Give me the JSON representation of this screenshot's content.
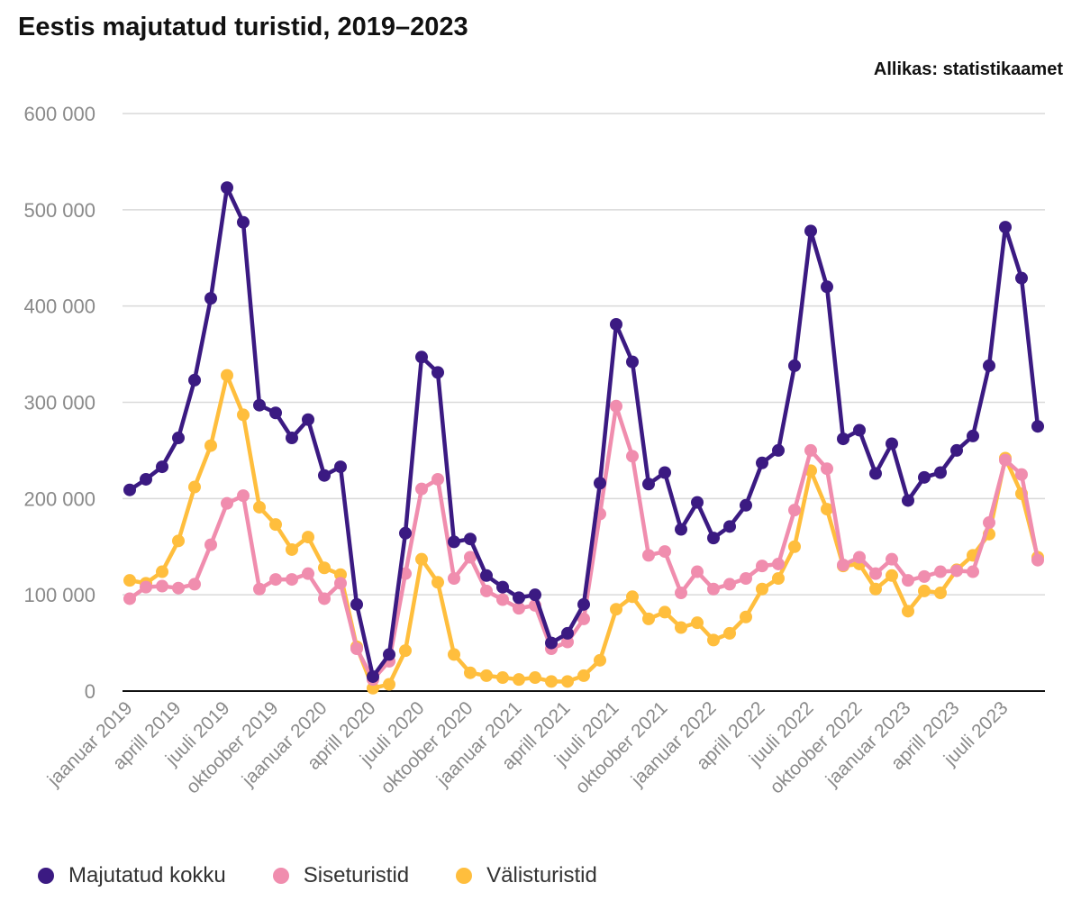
{
  "title": "Eestis majutatud turistid, 2019–2023",
  "source": "Allikas: statistikaamet",
  "colors": {
    "total": "#3b1a82",
    "domestic": "#f08dae",
    "foreign": "#ffbe3d",
    "grid": "#d9d9d9",
    "axis": "#111111"
  },
  "chart_data": {
    "type": "line",
    "title": "Eestis majutatud turistid, 2019–2023",
    "xlabel": "",
    "ylabel": "",
    "ylim": [
      0,
      600000
    ],
    "grid": true,
    "legend_position": "bottom",
    "y_ticks": [
      0,
      100000,
      200000,
      300000,
      400000,
      500000,
      600000
    ],
    "y_tick_labels": [
      "0",
      "100 000",
      "200 000",
      "300 000",
      "400 000",
      "500 000",
      "600 000"
    ],
    "x_tick_labels": [
      {
        "index": 0,
        "label": "jaanuar 2019"
      },
      {
        "index": 3,
        "label": "aprill 2019"
      },
      {
        "index": 6,
        "label": "juuli 2019"
      },
      {
        "index": 9,
        "label": "oktoober 2019"
      },
      {
        "index": 12,
        "label": "jaanuar 2020"
      },
      {
        "index": 15,
        "label": "aprill 2020"
      },
      {
        "index": 18,
        "label": "juuli 2020"
      },
      {
        "index": 21,
        "label": "oktoober 2020"
      },
      {
        "index": 24,
        "label": "jaanuar 2021"
      },
      {
        "index": 27,
        "label": "aprill 2021"
      },
      {
        "index": 30,
        "label": "juuli 2021"
      },
      {
        "index": 33,
        "label": "oktoober 2021"
      },
      {
        "index": 36,
        "label": "jaanuar 2022"
      },
      {
        "index": 39,
        "label": "aprill 2022"
      },
      {
        "index": 42,
        "label": "juuli 2022"
      },
      {
        "index": 45,
        "label": "oktoober 2022"
      },
      {
        "index": 48,
        "label": "jaanuar 2023"
      },
      {
        "index": 51,
        "label": "aprill 2023"
      },
      {
        "index": 54,
        "label": "juuli 2023"
      }
    ],
    "x": [
      "2019-01",
      "2019-02",
      "2019-03",
      "2019-04",
      "2019-05",
      "2019-06",
      "2019-07",
      "2019-08",
      "2019-09",
      "2019-10",
      "2019-11",
      "2019-12",
      "2020-01",
      "2020-02",
      "2020-03",
      "2020-04",
      "2020-05",
      "2020-06",
      "2020-07",
      "2020-08",
      "2020-09",
      "2020-10",
      "2020-11",
      "2020-12",
      "2021-01",
      "2021-02",
      "2021-03",
      "2021-04",
      "2021-05",
      "2021-06",
      "2021-07",
      "2021-08",
      "2021-09",
      "2021-10",
      "2021-11",
      "2021-12",
      "2022-01",
      "2022-02",
      "2022-03",
      "2022-04",
      "2022-05",
      "2022-06",
      "2022-07",
      "2022-08",
      "2022-09",
      "2022-10",
      "2022-11",
      "2022-12",
      "2023-01",
      "2023-02",
      "2023-03",
      "2023-04",
      "2023-05",
      "2023-06",
      "2023-07",
      "2023-08",
      "2023-09"
    ],
    "series": [
      {
        "name": "Majutatud kokku",
        "color": "#3b1a82",
        "values": [
          209000,
          220000,
          233000,
          263000,
          323000,
          408000,
          523000,
          487000,
          297000,
          289000,
          263000,
          282000,
          224000,
          233000,
          90000,
          15000,
          38000,
          164000,
          347000,
          331000,
          155000,
          158000,
          120000,
          108000,
          97000,
          100000,
          50000,
          60000,
          90000,
          216000,
          381000,
          342000,
          215000,
          227000,
          168000,
          196000,
          159000,
          171000,
          193000,
          237000,
          250000,
          338000,
          478000,
          420000,
          262000,
          271000,
          226000,
          257000,
          198000,
          222000,
          227000,
          250000,
          265000,
          338000,
          482000,
          429000,
          275000
        ]
      },
      {
        "name": "Siseturistid",
        "color": "#f08dae",
        "values": [
          96000,
          108000,
          109000,
          107000,
          111000,
          152000,
          195000,
          203000,
          106000,
          116000,
          116000,
          122000,
          96000,
          112000,
          44000,
          12000,
          31000,
          122000,
          210000,
          220000,
          117000,
          139000,
          104000,
          95000,
          86000,
          89000,
          44000,
          51000,
          75000,
          184000,
          296000,
          244000,
          141000,
          145000,
          102000,
          124000,
          106000,
          111000,
          117000,
          130000,
          132000,
          188000,
          250000,
          231000,
          131000,
          139000,
          122000,
          137000,
          115000,
          119000,
          124000,
          125000,
          124000,
          175000,
          240000,
          225000,
          136000
        ]
      },
      {
        "name": "Välisturistid",
        "color": "#ffbe3d",
        "values": [
          115000,
          112000,
          124000,
          156000,
          212000,
          255000,
          328000,
          287000,
          191000,
          173000,
          147000,
          160000,
          128000,
          121000,
          46000,
          3000,
          7000,
          42000,
          137000,
          113000,
          38000,
          19000,
          16000,
          14000,
          12000,
          14000,
          10000,
          10000,
          16000,
          32000,
          85000,
          98000,
          75000,
          82000,
          66000,
          71000,
          53000,
          60000,
          77000,
          106000,
          117000,
          150000,
          229000,
          189000,
          130000,
          132000,
          106000,
          120000,
          83000,
          104000,
          102000,
          126000,
          141000,
          163000,
          242000,
          205000,
          139000
        ]
      }
    ]
  }
}
